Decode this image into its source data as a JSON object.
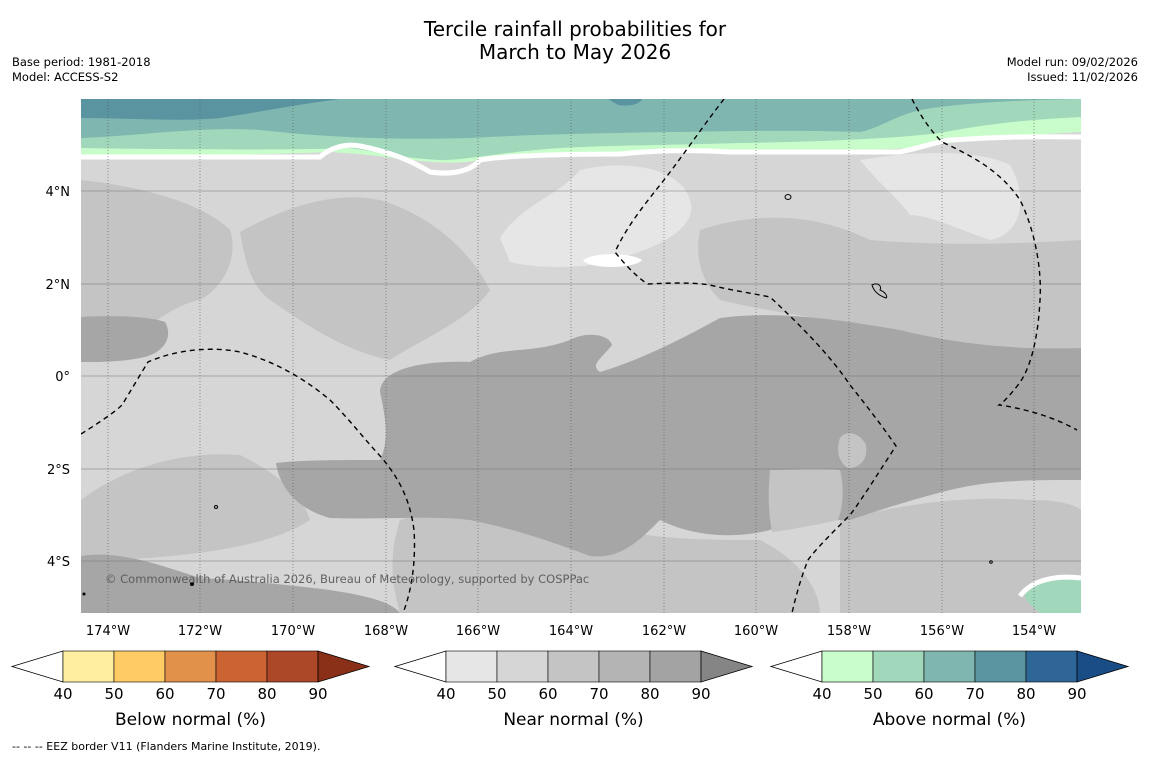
{
  "title": {
    "line1": "Tercile rainfall probabilities for",
    "line2": "March to May 2026"
  },
  "meta_left": {
    "base_period": "Base period: 1981-2018",
    "model": "Model: ACCESS-S2"
  },
  "meta_right": {
    "model_run": "Model run: 09/02/2026",
    "issued": "Issued: 11/02/2026"
  },
  "map": {
    "lon_labels": [
      "174°W",
      "172°W",
      "170°W",
      "168°W",
      "166°W",
      "164°W",
      "162°W",
      "160°W",
      "158°W",
      "156°W",
      "154°W"
    ],
    "lat_labels": [
      "4°N",
      "2°N",
      "0°",
      "2°S",
      "4°S"
    ],
    "copyright": "© Commonwealth of Australia 2026, Bureau of Meteorology, supported by COSPPac"
  },
  "legends": [
    {
      "key": "below",
      "label": "Below normal (%)",
      "ticks": [
        "40",
        "50",
        "60",
        "70",
        "80",
        "90"
      ],
      "colors": [
        "#ffeda0",
        "#fecb65",
        "#e1914a",
        "#cb6333",
        "#ac4727",
        "#8a3018"
      ]
    },
    {
      "key": "near",
      "label": "Near normal (%)",
      "ticks": [
        "40",
        "50",
        "60",
        "70",
        "80",
        "90"
      ],
      "colors": [
        "#e6e6e6",
        "#d6d6d6",
        "#c4c4c4",
        "#b4b4b4",
        "#a3a3a3",
        "#858585"
      ]
    },
    {
      "key": "above",
      "label": "Above normal (%)",
      "ticks": [
        "40",
        "50",
        "60",
        "70",
        "80",
        "90"
      ],
      "colors": [
        "#c8fcca",
        "#a1d8bc",
        "#7fb7b0",
        "#5a94a1",
        "#2f6698",
        "#1a4c85"
      ]
    }
  ],
  "footer": "--  --  -- EEZ border V11 (Flanders Marine Institute, 2019)."
}
